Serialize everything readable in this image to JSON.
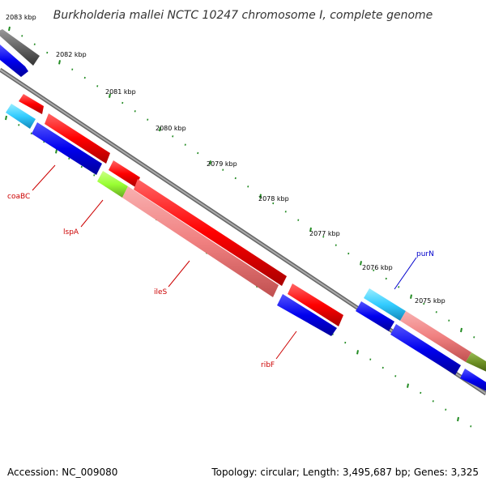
{
  "title": "Burkholderia mallei NCTC 10247 chromosome I, complete genome",
  "footer": {
    "accession": "Accession: NC_009080",
    "summary": "Topology: circular; Length: 3,495,687 bp; Genes: 3,325"
  },
  "scale_labels": [
    "2083 kbp",
    "2082 kbp",
    "2081 kbp",
    "2080 kbp",
    "2079 kbp",
    "2078 kbp",
    "2077 kbp",
    "2076 kbp",
    "2075 kbp"
  ],
  "gene_labels": {
    "coaBC": "coaBC",
    "lspA": "lspA",
    "ileS": "ileS",
    "ribF": "ribF",
    "purN": "purN"
  },
  "colors": {
    "forward_cds": "#ff0000",
    "reverse_cds": "#0000ee",
    "rna": "#33ccff",
    "pseudo": "#f08080",
    "lipoprotein": "#99ff33",
    "olive": "#6b8e23",
    "gray": "#666666",
    "backbone": "#8c8c8c",
    "ticks": "#228b22",
    "label_red": "#cc0000",
    "label_blue": "#0000cc"
  }
}
